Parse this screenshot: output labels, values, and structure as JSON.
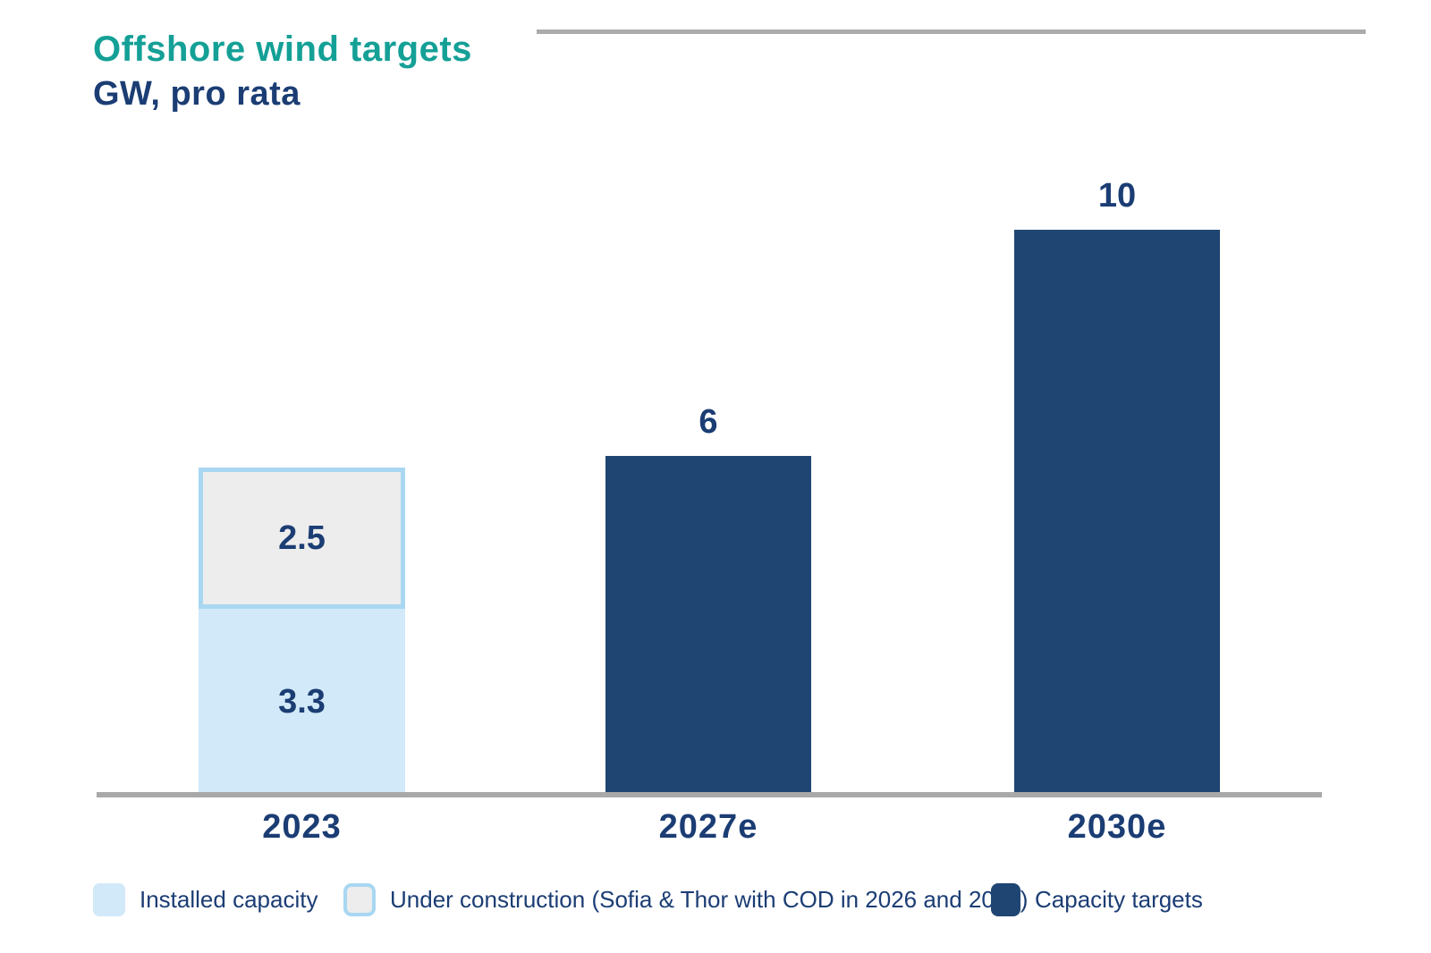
{
  "chart_data": {
    "type": "bar",
    "title": "Offshore wind targets",
    "subtitle": "GW, pro rata",
    "unit": "GW",
    "categories": [
      "2023",
      "2027e",
      "2030e"
    ],
    "series": [
      {
        "name": "Installed capacity",
        "values": [
          3.3,
          0,
          0
        ]
      },
      {
        "name": "Under construction (Sofia & Thor with COD in 2026 and 2027)",
        "values": [
          2.5,
          0,
          0
        ]
      },
      {
        "name": "Capacity targets",
        "values": [
          0,
          6,
          10
        ]
      }
    ],
    "value_labels": {
      "installed_2023": "3.3",
      "under_construction_2023": "2.5",
      "target_2027": "6",
      "target_2030": "10"
    },
    "ylim": [
      0,
      10.5
    ],
    "grid": false,
    "legend_position": "bottom"
  },
  "legend": {
    "items": [
      {
        "label": "Installed capacity",
        "swatch": "light-blue"
      },
      {
        "label": "Under construction (Sofia & Thor with COD in 2026 and 2027)",
        "swatch": "gray-with-blue-border"
      },
      {
        "label": "Capacity targets",
        "swatch": "navy"
      }
    ]
  },
  "colors": {
    "title_teal": "#14a096",
    "navy_text": "#1b3d74",
    "bar_navy": "#1f4573",
    "bar_light_blue": "#d2e9f9",
    "bar_gray": "#ededed",
    "light_blue_border": "#a9d7f2",
    "axis_gray": "#a9a9a9"
  }
}
